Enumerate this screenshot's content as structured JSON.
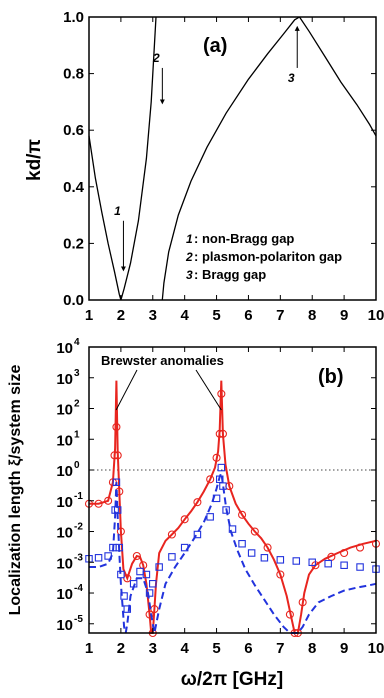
{
  "chart_data": [
    {
      "panel": "(a)",
      "type": "line",
      "xlim": [
        1,
        10
      ],
      "ylim": [
        0.0,
        1.0
      ],
      "xticks": [
        "1",
        "2",
        "3",
        "4",
        "5",
        "6",
        "7",
        "8",
        "9",
        "10"
      ],
      "yticks": [
        "0.0",
        "0.2",
        "0.4",
        "0.6",
        "0.8",
        "1.0"
      ],
      "ylabel": "kd/π",
      "xlabel": "ω/2π [GHz]",
      "grid": false,
      "color": "#000000",
      "series": [
        {
          "x": [
            1.0,
            1.2,
            1.4,
            1.6,
            1.8,
            1.95,
            2.0
          ],
          "y": [
            0.58,
            0.43,
            0.31,
            0.2,
            0.1,
            0.02,
            0.0
          ]
        },
        {
          "x": [
            2.0,
            2.1,
            2.3,
            2.55,
            2.8,
            2.95,
            3.05,
            3.1
          ],
          "y": [
            0.0,
            0.04,
            0.13,
            0.28,
            0.5,
            0.7,
            0.9,
            1.0
          ]
        },
        {
          "x": [
            3.3,
            3.35,
            3.5,
            3.8,
            4.2,
            4.7,
            5.3,
            6.0,
            6.6,
            7.1,
            7.45,
            7.6
          ],
          "y": [
            0.0,
            0.06,
            0.17,
            0.3,
            0.42,
            0.54,
            0.66,
            0.78,
            0.87,
            0.94,
            0.99,
            1.0
          ]
        },
        {
          "x": [
            7.6,
            7.9,
            8.4,
            8.9,
            9.4,
            9.8,
            10.0
          ],
          "y": [
            1.0,
            0.95,
            0.86,
            0.77,
            0.69,
            0.62,
            0.58
          ]
        }
      ],
      "annotations": [
        {
          "marker": "1",
          "x": 2.08,
          "y_from": 0.28,
          "y_to": 0.11
        },
        {
          "marker": "2",
          "x": 3.3,
          "y_from": 0.82,
          "y_to": 0.7
        },
        {
          "marker": "3",
          "x": 7.53,
          "y_from": 0.82,
          "y_to": 0.96
        }
      ],
      "legend": [
        {
          "marker": "1",
          "text": ": non-Bragg gap"
        },
        {
          "marker": "2",
          "text": ": plasmon-polariton gap"
        },
        {
          "marker": "3",
          "text": ": Bragg gap"
        }
      ]
    },
    {
      "panel": "(b)",
      "type": "line",
      "scale_y": "log",
      "xlim": [
        1,
        10
      ],
      "ylim_exp": [
        -5.3,
        4
      ],
      "xticks": [
        "1",
        "2",
        "3",
        "4",
        "5",
        "6",
        "7",
        "8",
        "9",
        "10"
      ],
      "ytick_exps": [
        -5,
        -4,
        -3,
        -2,
        -1,
        0,
        1,
        2,
        3,
        4
      ],
      "ytick_base": "10",
      "ylabel": "Localization length ξ/system size",
      "xlabel": "ω/2π [GHz]",
      "reference_line_y": 1,
      "annotation_text": "Brewster anomalies",
      "annotation_targets_x": [
        1.85,
        5.15
      ],
      "colors": {
        "red": "#e8251f",
        "blue": "#2233dd"
      },
      "series": [
        {
          "style": "red-solid",
          "x": [
            1.0,
            1.3,
            1.6,
            1.75,
            1.82,
            1.86,
            1.9,
            1.95,
            2.0,
            2.08,
            2.2,
            2.35,
            2.5,
            2.6,
            2.7,
            2.8,
            2.9,
            2.95,
            3.0,
            3.05,
            3.1,
            3.2,
            3.4,
            3.6,
            3.8,
            4.0,
            4.2,
            4.4,
            4.6,
            4.8,
            4.95,
            5.05,
            5.1,
            5.15,
            5.2,
            5.28,
            5.4,
            5.6,
            5.8,
            6.0,
            6.2,
            6.4,
            6.6,
            6.8,
            7.0,
            7.2,
            7.35,
            7.45,
            7.55,
            7.65,
            7.75,
            7.9,
            8.1,
            8.4,
            8.8,
            9.2,
            9.6,
            10.0
          ],
          "y": [
            0.08,
            0.08,
            0.1,
            0.4,
            5,
            800,
            4,
            0.2,
            0.01,
            0.0006,
            0.0003,
            0.0009,
            0.0016,
            0.0015,
            0.0008,
            0.0002,
            2e-05,
            4e-06,
            4e-06,
            3e-05,
            0.0002,
            0.002,
            0.005,
            0.008,
            0.013,
            0.025,
            0.045,
            0.09,
            0.2,
            0.5,
            1.2,
            4,
            20,
            800,
            15,
            1.5,
            0.3,
            0.08,
            0.035,
            0.018,
            0.01,
            0.006,
            0.003,
            0.0012,
            0.0004,
            8e-05,
            1.5e-05,
            4e-06,
            4e-06,
            2e-05,
            0.0001,
            0.0004,
            0.0008,
            0.0013,
            0.002,
            0.003,
            0.004,
            0.005
          ]
        },
        {
          "style": "red-circles",
          "x": [
            1.0,
            1.3,
            1.6,
            1.75,
            1.8,
            1.86,
            1.9,
            1.95,
            2.0,
            2.2,
            2.5,
            2.7,
            2.9,
            3.0,
            3.05,
            3.6,
            4.0,
            4.4,
            4.8,
            5.0,
            5.1,
            5.15,
            5.2,
            5.4,
            5.8,
            6.2,
            6.6,
            7.0,
            7.3,
            7.45,
            7.55,
            7.7,
            8.1,
            8.6,
            9.0,
            9.5,
            10.0
          ],
          "y": [
            0.08,
            0.08,
            0.1,
            0.4,
            3,
            25,
            3,
            0.2,
            0.01,
            0.0003,
            0.0016,
            0.0008,
            2e-05,
            4e-06,
            3e-05,
            0.008,
            0.025,
            0.09,
            0.5,
            2.5,
            15,
            300,
            15,
            0.3,
            0.035,
            0.01,
            0.003,
            0.0004,
            2e-05,
            4e-06,
            4e-06,
            5e-05,
            0.0008,
            0.0015,
            0.002,
            0.003,
            0.004
          ]
        },
        {
          "style": "blue-squares",
          "x": [
            1.0,
            1.3,
            1.6,
            1.75,
            1.82,
            1.86,
            1.9,
            1.95,
            2.0,
            2.1,
            2.2,
            2.4,
            2.6,
            2.8,
            2.9,
            3.0,
            3.2,
            3.6,
            4.0,
            4.4,
            4.8,
            5.0,
            5.1,
            5.15,
            5.2,
            5.3,
            5.5,
            5.8,
            6.1,
            6.5,
            7.0,
            7.5,
            8.0,
            8.5,
            9.0,
            9.5,
            10.0
          ],
          "y": [
            0.0013,
            0.0014,
            0.0016,
            0.003,
            0.05,
            0.4,
            0.05,
            0.003,
            0.0004,
            8e-05,
            3e-05,
            0.0002,
            0.0005,
            0.0004,
            0.0001,
            0.0002,
            0.0007,
            0.0015,
            0.003,
            0.008,
            0.03,
            0.12,
            0.5,
            1.2,
            0.3,
            0.05,
            0.012,
            0.004,
            0.002,
            0.0014,
            0.0012,
            0.0011,
            0.001,
            0.0009,
            0.0008,
            0.0007,
            0.0006
          ]
        },
        {
          "style": "blue-dashed",
          "x": [
            1.0,
            1.3,
            1.6,
            1.75,
            1.82,
            1.86,
            1.9,
            1.95,
            2.0,
            2.05,
            2.1,
            2.15,
            2.2,
            2.3,
            2.5,
            2.7,
            2.85,
            2.95,
            3.05,
            3.2,
            3.4,
            3.7,
            4.0,
            4.3,
            4.6,
            4.85,
            5.0,
            5.1,
            5.15,
            5.2,
            5.3,
            5.45,
            5.65,
            5.9,
            6.2,
            6.5,
            6.8,
            7.1,
            7.3,
            7.45,
            7.55,
            7.7,
            7.9,
            8.2,
            8.6,
            9.0,
            9.4,
            9.8,
            10.0
          ],
          "y": [
            0.0007,
            0.0007,
            0.0009,
            0.002,
            0.03,
            0.4,
            0.03,
            0.002,
            0.0002,
            4e-05,
            8e-06,
            4e-06,
            1e-05,
            8e-05,
            0.0003,
            0.0003,
            0.0001,
            2e-05,
            4e-06,
            3e-05,
            0.0002,
            0.0007,
            0.002,
            0.006,
            0.02,
            0.08,
            0.25,
            0.6,
            0.8,
            0.35,
            0.06,
            0.01,
            0.0025,
            0.0006,
            0.00018,
            6e-05,
            2e-05,
            8e-06,
            4e-06,
            4e-06,
            4e-06,
            8e-06,
            2e-05,
            5e-05,
            8e-05,
            0.00012,
            0.00015,
            0.00018,
            0.0002
          ]
        }
      ]
    }
  ]
}
